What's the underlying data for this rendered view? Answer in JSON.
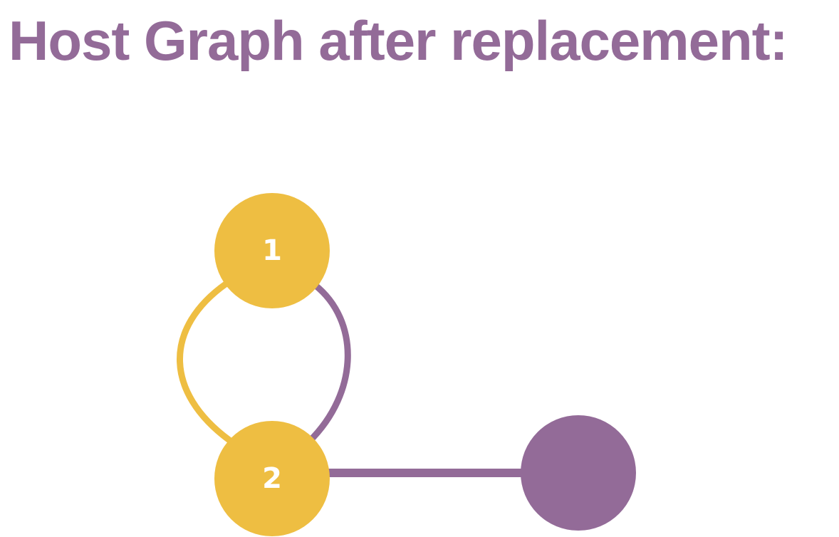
{
  "title": "Host Graph after replacement:",
  "colors": {
    "title": "#936b98",
    "yellow": "#eebe42",
    "purple": "#936b98",
    "label": "#ffffff"
  },
  "graph": {
    "nodes": [
      {
        "id": "node-1",
        "label": "1",
        "color": "yellow"
      },
      {
        "id": "node-2",
        "label": "2",
        "color": "yellow"
      },
      {
        "id": "node-3",
        "label": "",
        "color": "purple"
      }
    ],
    "edges": [
      {
        "from": "node-1",
        "to": "node-2",
        "color": "yellow"
      },
      {
        "from": "node-1",
        "to": "node-2",
        "color": "purple"
      },
      {
        "from": "node-2",
        "to": "node-3",
        "color": "purple"
      }
    ]
  }
}
